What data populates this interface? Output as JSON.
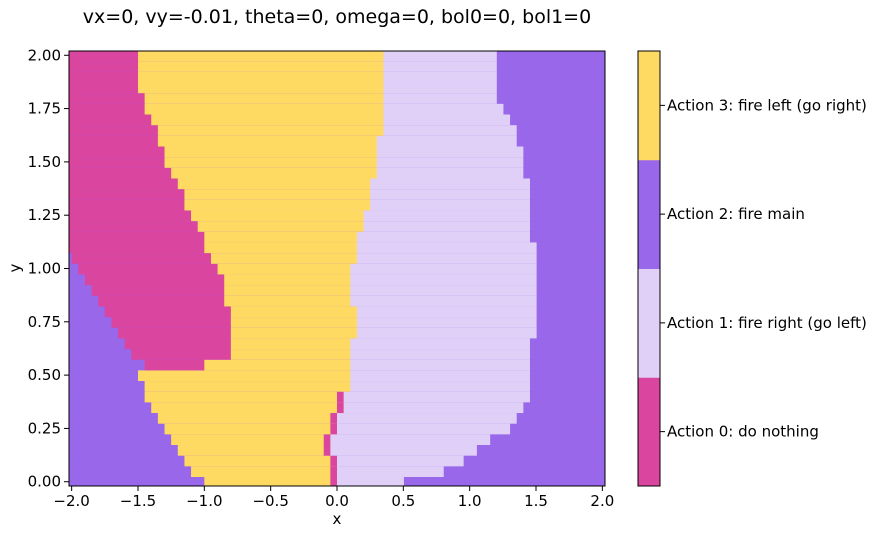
{
  "chart_data": {
    "type": "heatmap",
    "title": "vx=0, vy=-0.01, theta=0, omega=0, bol0=0, bol1=0",
    "xlabel": "x",
    "ylabel": "y",
    "xlim": [
      -2.02,
      2.02
    ],
    "ylim": [
      -0.02,
      2.02
    ],
    "xticks": [
      "−2.0",
      "−1.5",
      "−1.0",
      "−0.5",
      "0.0",
      "0.5",
      "1.0",
      "1.5",
      "2.0"
    ],
    "xtick_values": [
      -2.0,
      -1.5,
      -1.0,
      -0.5,
      0.0,
      0.5,
      1.0,
      1.5,
      2.0
    ],
    "yticks": [
      "0.00",
      "0.25",
      "0.50",
      "0.75",
      "1.00",
      "1.25",
      "1.50",
      "1.75",
      "2.00"
    ],
    "ytick_values": [
      0.0,
      0.25,
      0.5,
      0.75,
      1.0,
      1.25,
      1.5,
      1.75,
      2.0
    ],
    "classes": [
      {
        "id": 0,
        "label": "Action 0: do nothing",
        "color": "#da45a0"
      },
      {
        "id": 1,
        "label": "Action 1: fire right (go left)",
        "color": "#e0d0f7"
      },
      {
        "id": 2,
        "label": "Action 2: fire main",
        "color": "#9967e9"
      },
      {
        "id": 3,
        "label": "Action 3: fire left (go right)",
        "color": "#ffda63"
      }
    ],
    "region_profiles": {
      "y": [
        0.0,
        0.05,
        0.1,
        0.15,
        0.2,
        0.25,
        0.3,
        0.35,
        0.4,
        0.45,
        0.5,
        0.55,
        0.6,
        0.65,
        0.7,
        0.75,
        0.8,
        0.85,
        0.9,
        0.95,
        1.0,
        1.05,
        1.1,
        1.15,
        1.2,
        1.25,
        1.3,
        1.35,
        1.4,
        1.45,
        1.5,
        1.55,
        1.6,
        1.65,
        1.7,
        1.75,
        1.8,
        1.85,
        1.9,
        1.95,
        2.0
      ],
      "purple_left_edge_x": [
        -1.0,
        -1.1,
        -1.15,
        -1.2,
        -1.25,
        -1.3,
        -1.35,
        -1.4,
        -1.45,
        -1.45,
        -1.5,
        -1.55,
        -1.6,
        -1.65,
        -1.7,
        -1.75,
        -1.8,
        -1.85,
        -1.9,
        -1.95,
        -2.0,
        -2.0,
        -2.05,
        -2.05,
        -2.05,
        -2.05,
        -2.05,
        -2.05,
        -2.05,
        -2.05,
        -2.05,
        -2.05,
        -2.05,
        -2.05,
        -2.05,
        -2.05,
        -2.05,
        -2.05,
        -2.05,
        -2.05,
        -2.05
      ],
      "pink_right_edge_x": [
        null,
        null,
        null,
        null,
        null,
        null,
        null,
        null,
        null,
        null,
        null,
        -1.0,
        -0.8,
        -0.8,
        -0.8,
        -0.8,
        -0.8,
        -0.85,
        -0.85,
        -0.85,
        -0.9,
        -0.95,
        -1.0,
        -1.0,
        -1.05,
        -1.1,
        -1.15,
        -1.15,
        -1.2,
        -1.25,
        -1.3,
        -1.3,
        -1.35,
        -1.35,
        -1.4,
        -1.45,
        -1.45,
        -1.5,
        -1.5,
        -1.5,
        -1.5
      ],
      "pink_left_edge_x": [
        null,
        null,
        null,
        null,
        null,
        null,
        null,
        null,
        null,
        null,
        null,
        -1.45,
        -1.55,
        -1.6,
        -1.65,
        -1.7,
        -1.75,
        -1.8,
        -1.85,
        -1.9,
        -1.95,
        -2.0,
        -2.05,
        -2.05,
        -2.05,
        -2.05,
        -2.05,
        -2.05,
        -2.05,
        -2.05,
        -2.05,
        -2.05,
        -2.05,
        -2.05,
        -2.05,
        -2.05,
        -2.05,
        -2.05,
        -2.05,
        -2.05,
        -2.05
      ],
      "lavender_left_edge_x": [
        0.0,
        0.0,
        0.0,
        -0.05,
        -0.05,
        0.0,
        0.0,
        0.05,
        0.05,
        0.1,
        0.1,
        0.1,
        0.1,
        0.1,
        0.15,
        0.15,
        0.15,
        0.1,
        0.1,
        0.1,
        0.1,
        0.15,
        0.15,
        0.15,
        0.2,
        0.2,
        0.25,
        0.25,
        0.25,
        0.3,
        0.3,
        0.3,
        0.3,
        0.35,
        0.35,
        0.35,
        0.35,
        0.35,
        0.35,
        0.35,
        0.35
      ],
      "lavender_right_edge_x": [
        0.5,
        0.8,
        0.95,
        1.05,
        1.15,
        1.3,
        1.35,
        1.4,
        1.45,
        1.45,
        1.45,
        1.45,
        1.45,
        1.45,
        1.5,
        1.5,
        1.5,
        1.5,
        1.5,
        1.5,
        1.5,
        1.5,
        1.5,
        1.45,
        1.45,
        1.45,
        1.45,
        1.45,
        1.45,
        1.4,
        1.4,
        1.4,
        1.35,
        1.35,
        1.3,
        1.25,
        1.2,
        1.2,
        1.2,
        1.2,
        1.2
      ]
    }
  }
}
